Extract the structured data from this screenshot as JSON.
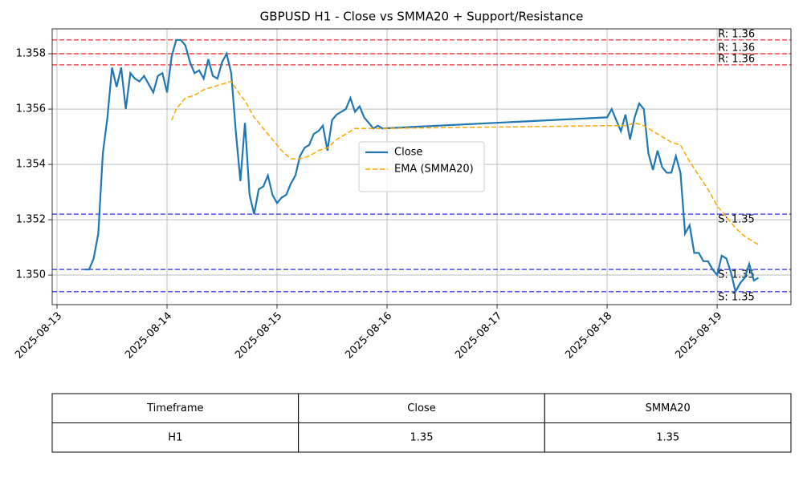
{
  "chart_data": {
    "type": "line",
    "title": "GBPUSD H1 - Close vs SMMA20 + Support/Resistance",
    "series": [
      {
        "name": "Close",
        "color": "#1f77b4",
        "style": "solid",
        "x": [
          6,
          7,
          8,
          9,
          10,
          11,
          12,
          13,
          14,
          15,
          16,
          17,
          18,
          19,
          20,
          21,
          22,
          23,
          24,
          25,
          26,
          27,
          28,
          29,
          30,
          31,
          32,
          33,
          34,
          35,
          36,
          37,
          38,
          39,
          40,
          41,
          42,
          43,
          44,
          45,
          46,
          47,
          48,
          49,
          50,
          51,
          52,
          53,
          54,
          55,
          56,
          57,
          58,
          59,
          60,
          61,
          62,
          63,
          64,
          65,
          66,
          67,
          68,
          69,
          70,
          71,
          120,
          121,
          122,
          123,
          124,
          125,
          126,
          127,
          128,
          129,
          130,
          131,
          132,
          133,
          134,
          135,
          136,
          137,
          138,
          139,
          140,
          141,
          142,
          143,
          144,
          145,
          146,
          147,
          148,
          149,
          150,
          151,
          152,
          153
        ],
        "values": [
          1.3502,
          1.3502,
          1.3506,
          1.3515,
          1.3544,
          1.3557,
          1.3575,
          1.3568,
          1.3575,
          1.356,
          1.3573,
          1.3571,
          1.357,
          1.3572,
          1.3569,
          1.3566,
          1.3572,
          1.3573,
          1.3566,
          1.3579,
          1.3585,
          1.3585,
          1.3583,
          1.3577,
          1.3573,
          1.3574,
          1.3571,
          1.3578,
          1.3572,
          1.3571,
          1.3577,
          1.358,
          1.3573,
          1.3552,
          1.3534,
          1.3555,
          1.3529,
          1.3522,
          1.3531,
          1.3532,
          1.3536,
          1.3529,
          1.3526,
          1.3528,
          1.3529,
          1.3533,
          1.3536,
          1.3543,
          1.3546,
          1.3547,
          1.3551,
          1.3552,
          1.3554,
          1.3545,
          1.3556,
          1.3558,
          1.3559,
          1.356,
          1.3564,
          1.3559,
          1.3561,
          1.3557,
          1.3555,
          1.3553,
          1.3554,
          1.3553,
          1.3557,
          1.356,
          1.3556,
          1.3552,
          1.3558,
          1.3549,
          1.3557,
          1.3562,
          1.356,
          1.3544,
          1.3538,
          1.3545,
          1.3539,
          1.3537,
          1.3537,
          1.3543,
          1.3537,
          1.3515,
          1.3518,
          1.3508,
          1.3508,
          1.3505,
          1.3505,
          1.3502,
          1.35,
          1.3507,
          1.3506,
          1.3501,
          1.3494,
          1.3497,
          1.3499,
          1.3504,
          1.3498,
          1.3499
        ]
      },
      {
        "name": "EMA (SMMA20)",
        "color": "orange",
        "style": "dashed",
        "x": [
          25,
          26,
          27,
          28,
          30,
          32,
          34,
          36,
          38,
          40,
          41,
          43,
          45,
          47,
          49,
          51,
          53,
          55,
          57,
          59,
          61,
          63,
          65,
          67,
          71,
          120,
          122,
          124,
          126,
          128,
          130,
          132,
          134,
          136,
          138,
          140,
          142,
          144,
          146,
          148,
          150,
          152,
          153
        ],
        "values": [
          1.3556,
          1.356,
          1.3562,
          1.3564,
          1.3565,
          1.3567,
          1.3568,
          1.3569,
          1.357,
          1.3565,
          1.3563,
          1.3557,
          1.3553,
          1.3549,
          1.3545,
          1.3542,
          1.3542,
          1.3543,
          1.3545,
          1.3546,
          1.3549,
          1.3551,
          1.3553,
          1.3553,
          1.3553,
          1.3554,
          1.3554,
          1.3554,
          1.3555,
          1.3554,
          1.3552,
          1.355,
          1.3548,
          1.3547,
          1.3541,
          1.3536,
          1.3531,
          1.3525,
          1.3521,
          1.3517,
          1.3514,
          1.3512,
          1.3511
        ]
      }
    ],
    "hlines": [
      {
        "value": 1.3585,
        "label": "R: 1.36",
        "color": "red"
      },
      {
        "value": 1.358,
        "label": "R: 1.36",
        "color": "red"
      },
      {
        "value": 1.3576,
        "label": "R: 1.36",
        "color": "red"
      },
      {
        "value": 1.3522,
        "label": "S: 1.35",
        "color": "blue"
      },
      {
        "value": 1.3502,
        "label": "S: 1.35",
        "color": "blue"
      },
      {
        "value": 1.3494,
        "label": "S: 1.35",
        "color": "blue"
      }
    ],
    "xlim": [
      -1.05,
      160.1
    ],
    "xticks": [
      {
        "value": 0,
        "label": "2025-08-13"
      },
      {
        "value": 24,
        "label": "2025-08-14"
      },
      {
        "value": 48,
        "label": "2025-08-15"
      },
      {
        "value": 72,
        "label": "2025-08-16"
      },
      {
        "value": 96,
        "label": "2025-08-17"
      },
      {
        "value": 120,
        "label": "2025-08-18"
      },
      {
        "value": 144,
        "label": "2025-08-19"
      }
    ],
    "ylim": [
      1.34893,
      1.3589
    ],
    "yticks": [
      {
        "value": 1.35,
        "label": "1.350"
      },
      1.352,
      1.354,
      1.356,
      1.358
    ],
    "grid": true,
    "legend": "center"
  },
  "table": {
    "columns": [
      "Timeframe",
      "Close",
      "SMMA20"
    ],
    "rows": [
      [
        "H1",
        1.35,
        1.35
      ]
    ]
  }
}
